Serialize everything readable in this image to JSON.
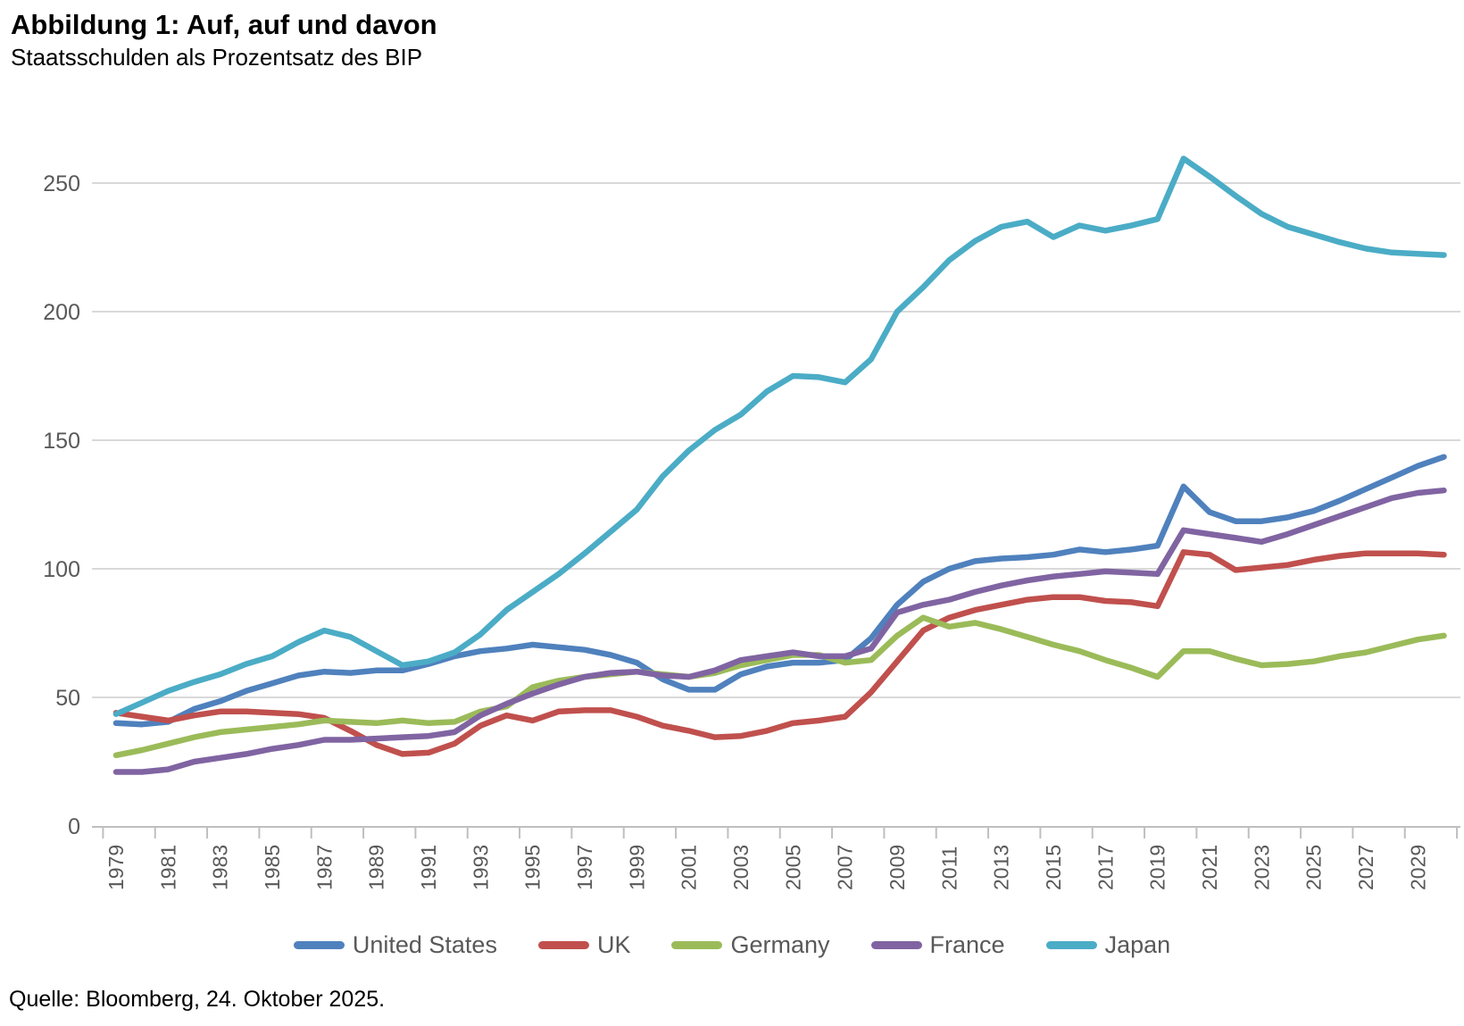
{
  "header": {
    "title": "Abbildung 1: Auf, auf und davon",
    "subtitle": "Staatsschulden als Prozentsatz des BIP"
  },
  "source": "Quelle: Bloomberg, 24. Oktober 2025.",
  "chart_data": {
    "type": "line",
    "title": "Abbildung 1: Auf, auf und davon",
    "subtitle": "Staatsschulden als Prozentsatz des BIP",
    "xlabel": "",
    "ylabel": "",
    "ylim": [
      0,
      270
    ],
    "yticks": [
      0,
      50,
      100,
      150,
      200,
      250
    ],
    "grid": true,
    "grid_color": "#d9d9d9",
    "axis_color": "#bfbfbf",
    "tick_label_color": "#595959",
    "legend_position": "bottom",
    "x": [
      1979,
      1980,
      1981,
      1982,
      1983,
      1984,
      1985,
      1986,
      1987,
      1988,
      1989,
      1990,
      1991,
      1992,
      1993,
      1994,
      1995,
      1996,
      1997,
      1998,
      1999,
      2000,
      2001,
      2002,
      2003,
      2004,
      2005,
      2006,
      2007,
      2008,
      2009,
      2010,
      2011,
      2012,
      2013,
      2014,
      2015,
      2016,
      2017,
      2018,
      2019,
      2020,
      2021,
      2022,
      2023,
      2024,
      2025,
      2026,
      2027,
      2028,
      2029,
      2030
    ],
    "x_tick_labels": [
      "1979",
      "1981",
      "1983",
      "1985",
      "1987",
      "1989",
      "1991",
      "1993",
      "1995",
      "1997",
      "1999",
      "2001",
      "2003",
      "2005",
      "2007",
      "2009",
      "2011",
      "2013",
      "2015",
      "2017",
      "2019",
      "2021",
      "2023",
      "2025",
      "2027",
      "2029"
    ],
    "series": [
      {
        "name": "United States",
        "color": "#4f81bd",
        "values": [
          40,
          39.5,
          40.5,
          45.5,
          48.5,
          52.5,
          55.5,
          58.5,
          60,
          59.5,
          60.5,
          60.5,
          63,
          66,
          68,
          69,
          70.5,
          69.5,
          68.5,
          66.5,
          63.5,
          57,
          53,
          53,
          59,
          62,
          63.5,
          63.5,
          64.5,
          73,
          86,
          95,
          100,
          103,
          104,
          104.5,
          105.5,
          107.5,
          106.5,
          107.5,
          109,
          132,
          122,
          118.5,
          118.5,
          120,
          122.5,
          126.5,
          131,
          135.5,
          140,
          143.5
        ]
      },
      {
        "name": "UK",
        "color": "#c0504d",
        "values": [
          44,
          42.5,
          41,
          43,
          44.5,
          44.5,
          44,
          43.5,
          42,
          37,
          31.5,
          28,
          28.5,
          32,
          39,
          43,
          41,
          44.5,
          45,
          45,
          42.5,
          39,
          37,
          34.5,
          35,
          37,
          40,
          41,
          42.5,
          52,
          64,
          76,
          81,
          84,
          86,
          88,
          89,
          89,
          87.5,
          87,
          85.5,
          106.5,
          105.5,
          99.5,
          100.5,
          101.5,
          103.5,
          105,
          106,
          106,
          106,
          105.5
        ]
      },
      {
        "name": "Germany",
        "color": "#9bbb59",
        "values": [
          27.5,
          29.5,
          32,
          34.5,
          36.5,
          37.5,
          38.5,
          39.5,
          41,
          40.5,
          40,
          41,
          40,
          40.5,
          44.5,
          46.5,
          54,
          56.5,
          58,
          59,
          60,
          59,
          58,
          59.5,
          62.5,
          64.5,
          66.5,
          66.5,
          63.5,
          64.5,
          74,
          81,
          77.5,
          79,
          76.5,
          73.5,
          70.5,
          68,
          64.5,
          61.5,
          58,
          68,
          68,
          65,
          62.5,
          63,
          64,
          66,
          67.5,
          70,
          72.5,
          74
        ]
      },
      {
        "name": "France",
        "color": "#8064a2",
        "values": [
          21,
          21,
          22,
          25,
          26.5,
          28,
          30,
          31.5,
          33.5,
          33.5,
          34,
          34.5,
          35,
          36.5,
          43,
          47.5,
          51.5,
          55,
          58,
          59.5,
          60,
          58.5,
          58,
          60.5,
          64.5,
          66,
          67.5,
          66,
          66,
          69,
          83,
          86,
          88,
          91,
          93.5,
          95.5,
          97,
          98,
          99,
          98.5,
          98,
          115,
          113.5,
          112,
          110.5,
          113.5,
          117,
          120.5,
          124,
          127.5,
          129.5,
          130.5
        ]
      },
      {
        "name": "Japan",
        "color": "#4bacc6",
        "values": [
          43.5,
          48,
          52.5,
          56,
          59,
          63,
          66,
          71.5,
          76,
          73.5,
          68,
          62.5,
          64,
          67.5,
          74.5,
          84,
          91,
          98,
          106,
          114.5,
          123,
          136,
          146,
          154,
          160,
          169,
          175,
          174.5,
          172.5,
          181.5,
          200,
          209.5,
          220,
          227.5,
          233,
          235,
          229,
          233.5,
          231.5,
          233.5,
          236,
          259.5,
          252.5,
          245,
          238,
          233,
          230,
          227,
          224.5,
          223,
          222.5,
          222
        ]
      }
    ]
  }
}
